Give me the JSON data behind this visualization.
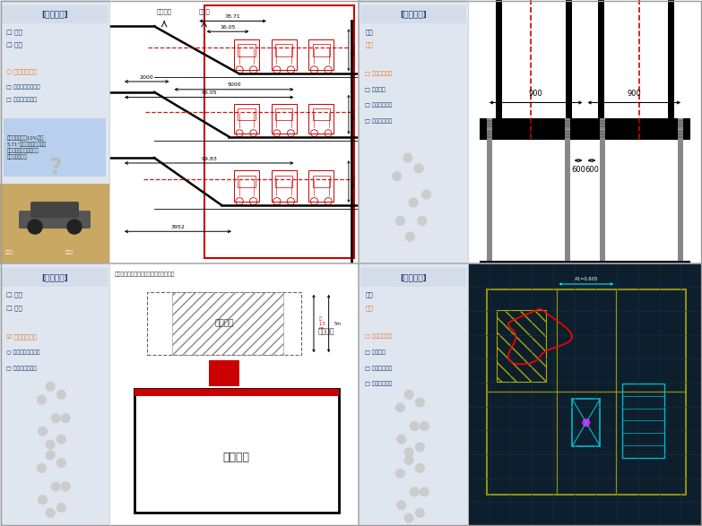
{
  "bg_color": "#e8e8e8",
  "white": "#ffffff",
  "orange": "#e87722",
  "dark_blue": "#1a3a6b",
  "red": "#cc0000",
  "light_blue_bg": "#d4dcea",
  "label_panel_bg": "#e0e6f0",
  "divider_color": "#aaaaaa",
  "panels": {
    "tl_label": "[案例分析]",
    "tr_label": "[案例分析]",
    "bl_label": "[案例分析]",
    "br_label": "[案例分析]"
  }
}
